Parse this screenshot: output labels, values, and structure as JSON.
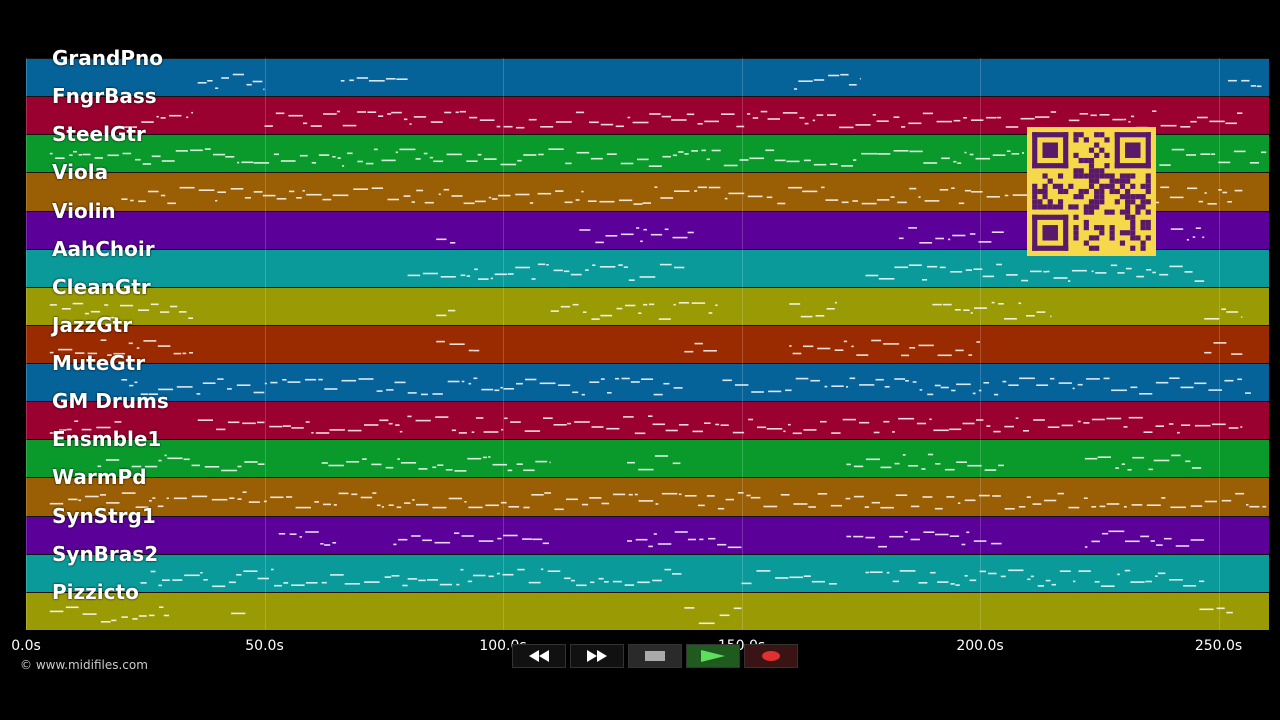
{
  "tracks": [
    {
      "name": "GrandPno",
      "color": "#05639a"
    },
    {
      "name": "FngrBass",
      "color": "#9a0030"
    },
    {
      "name": "SteelGtr",
      "color": "#0a9a2c"
    },
    {
      "name": "Viola",
      "color": "#9a5e05"
    },
    {
      "name": "Violin",
      "color": "#5c009a"
    },
    {
      "name": "AahChoir",
      "color": "#0a9a9a"
    },
    {
      "name": "CleanGtr",
      "color": "#9a9a05"
    },
    {
      "name": "JazzGtr",
      "color": "#9a2a00"
    },
    {
      "name": "MuteGtr",
      "color": "#05639a"
    },
    {
      "name": "GM Drums",
      "color": "#9a0030"
    },
    {
      "name": "Ensmble1",
      "color": "#0a9a2c"
    },
    {
      "name": "WarmPd",
      "color": "#9a5e05"
    },
    {
      "name": "SynStrg1",
      "color": "#5c009a"
    },
    {
      "name": "SynBras2",
      "color": "#0a9a9a"
    },
    {
      "name": "Pizzicto",
      "color": "#9a9a05"
    }
  ],
  "timeline": {
    "ticks": [
      "0.0s",
      "50.0s",
      "100.0s",
      "150.0s",
      "200.0s",
      "250.0s"
    ]
  },
  "copyright": "© www.midifiles.com",
  "transport": {
    "rewind_icon": "rewind-icon",
    "forward_icon": "fast-forward-icon",
    "stop_icon": "stop-icon",
    "play_icon": "play-icon",
    "record_icon": "record-icon"
  }
}
